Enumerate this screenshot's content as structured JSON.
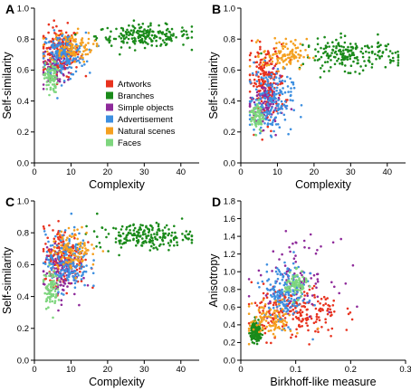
{
  "chart_data": [
    {
      "panel": "A",
      "type": "scatter",
      "xlabel": "Complexity",
      "ylabel": "Self-similarity",
      "xlim": [
        0,
        45
      ],
      "ylim": [
        0,
        1.0
      ],
      "xticks": [
        0,
        10,
        20,
        30,
        40
      ],
      "yticks": [
        0,
        0.2,
        0.4,
        0.6,
        0.8,
        1.0
      ],
      "series_clusters": [
        {
          "name": "Artworks",
          "color": "#e8321e",
          "n": 200,
          "x_mean": 7,
          "x_sd": 2.6,
          "y_mean": 0.72,
          "y_sd": 0.08
        },
        {
          "name": "Branches",
          "color": "#1a8a1a",
          "n": 200,
          "x_mean": 30,
          "x_sd": 6.5,
          "y_mean": 0.82,
          "y_sd": 0.035
        },
        {
          "name": "Simple objects",
          "color": "#8e2a9a",
          "n": 100,
          "x_mean": 6,
          "x_sd": 2.2,
          "y_mean": 0.63,
          "y_sd": 0.06
        },
        {
          "name": "Advertisement",
          "color": "#3d8fe0",
          "n": 180,
          "x_mean": 8,
          "x_sd": 3,
          "y_mean": 0.7,
          "y_sd": 0.07
        },
        {
          "name": "Natural scenes",
          "color": "#f5a020",
          "n": 100,
          "x_mean": 10,
          "x_sd": 3,
          "y_mean": 0.75,
          "y_sd": 0.05
        },
        {
          "name": "Faces",
          "color": "#7ed67e",
          "n": 80,
          "x_mean": 4.5,
          "x_sd": 0.9,
          "y_mean": 0.55,
          "y_sd": 0.05
        }
      ]
    },
    {
      "panel": "B",
      "type": "scatter",
      "xlabel": "Complexity",
      "ylabel": "Self-similarity",
      "xlim": [
        0,
        45
      ],
      "ylim": [
        0,
        1.0
      ],
      "xticks": [
        0,
        10,
        20,
        30,
        40
      ],
      "yticks": [
        0,
        0.2,
        0.4,
        0.6,
        0.8,
        1.0
      ],
      "series_clusters": [
        {
          "name": "Artworks",
          "color": "#e8321e",
          "n": 200,
          "x_mean": 7,
          "x_sd": 2.5,
          "y_mean": 0.52,
          "y_sd": 0.12
        },
        {
          "name": "Branches",
          "color": "#1a8a1a",
          "n": 200,
          "x_mean": 30,
          "x_sd": 6.5,
          "y_mean": 0.7,
          "y_sd": 0.05
        },
        {
          "name": "Simple objects",
          "color": "#8e2a9a",
          "n": 100,
          "x_mean": 7,
          "x_sd": 2.3,
          "y_mean": 0.38,
          "y_sd": 0.08
        },
        {
          "name": "Advertisement",
          "color": "#3d8fe0",
          "n": 180,
          "x_mean": 8,
          "x_sd": 3,
          "y_mean": 0.4,
          "y_sd": 0.1
        },
        {
          "name": "Natural scenes",
          "color": "#f5a020",
          "n": 100,
          "x_mean": 12,
          "x_sd": 3,
          "y_mean": 0.7,
          "y_sd": 0.05
        },
        {
          "name": "Faces",
          "color": "#7ed67e",
          "n": 80,
          "x_mean": 4.5,
          "x_sd": 0.9,
          "y_mean": 0.3,
          "y_sd": 0.05
        }
      ]
    },
    {
      "panel": "C",
      "type": "scatter",
      "xlabel": "Complexity",
      "ylabel": "Self-similarity",
      "xlim": [
        0,
        45
      ],
      "ylim": [
        0,
        1.0
      ],
      "xticks": [
        0,
        10,
        20,
        30,
        40
      ],
      "yticks": [
        0,
        0.2,
        0.4,
        0.6,
        0.8,
        1.0
      ],
      "series_clusters": [
        {
          "name": "Artworks",
          "color": "#e8321e",
          "n": 200,
          "x_mean": 8,
          "x_sd": 2.8,
          "y_mean": 0.65,
          "y_sd": 0.09
        },
        {
          "name": "Branches",
          "color": "#1a8a1a",
          "n": 200,
          "x_mean": 30,
          "x_sd": 6.5,
          "y_mean": 0.78,
          "y_sd": 0.04
        },
        {
          "name": "Simple objects",
          "color": "#8e2a9a",
          "n": 100,
          "x_mean": 7,
          "x_sd": 2.3,
          "y_mean": 0.55,
          "y_sd": 0.08
        },
        {
          "name": "Advertisement",
          "color": "#3d8fe0",
          "n": 180,
          "x_mean": 9,
          "x_sd": 3,
          "y_mean": 0.62,
          "y_sd": 0.09
        },
        {
          "name": "Natural scenes",
          "color": "#f5a020",
          "n": 100,
          "x_mean": 11,
          "x_sd": 3,
          "y_mean": 0.7,
          "y_sd": 0.06
        },
        {
          "name": "Faces",
          "color": "#7ed67e",
          "n": 80,
          "x_mean": 4.5,
          "x_sd": 0.9,
          "y_mean": 0.45,
          "y_sd": 0.06
        }
      ]
    },
    {
      "panel": "D",
      "type": "scatter",
      "xlabel": "Birkhoff-like measure",
      "ylabel": "Anisotropy",
      "xlim": [
        0,
        0.3
      ],
      "ylim": [
        0,
        1.8
      ],
      "xticks": [
        0,
        0.1,
        0.2,
        0.3
      ],
      "yticks": [
        0,
        0.2,
        0.4,
        0.6,
        0.8,
        1.0,
        1.2,
        1.4,
        1.6,
        1.8
      ],
      "series_clusters": [
        {
          "name": "Artworks",
          "color": "#e8321e",
          "n": 200,
          "x_mean": 0.1,
          "x_sd": 0.04,
          "y_mean": 0.55,
          "y_sd": 0.15
        },
        {
          "name": "Branches",
          "color": "#1a8a1a",
          "n": 200,
          "x_mean": 0.028,
          "x_sd": 0.005,
          "y_mean": 0.32,
          "y_sd": 0.05
        },
        {
          "name": "Simple objects",
          "color": "#8e2a9a",
          "n": 100,
          "x_mean": 0.1,
          "x_sd": 0.035,
          "y_mean": 0.95,
          "y_sd": 0.2
        },
        {
          "name": "Advertisement",
          "color": "#3d8fe0",
          "n": 180,
          "x_mean": 0.08,
          "x_sd": 0.02,
          "y_mean": 0.75,
          "y_sd": 0.17
        },
        {
          "name": "Natural scenes",
          "color": "#f5a020",
          "n": 100,
          "x_mean": 0.055,
          "x_sd": 0.02,
          "y_mean": 0.45,
          "y_sd": 0.1
        },
        {
          "name": "Faces",
          "color": "#7ed67e",
          "n": 80,
          "x_mean": 0.1,
          "x_sd": 0.01,
          "y_mean": 0.85,
          "y_sd": 0.07
        }
      ]
    }
  ],
  "legend": {
    "placement": "inside panel A, lower-right",
    "entries": [
      {
        "label": "Artworks",
        "color": "#e8321e"
      },
      {
        "label": "Branches",
        "color": "#1a8a1a"
      },
      {
        "label": "Simple objects",
        "color": "#8e2a9a"
      },
      {
        "label": "Advertisement",
        "color": "#3d8fe0"
      },
      {
        "label": "Natural scenes",
        "color": "#f5a020"
      },
      {
        "label": "Faces",
        "color": "#7ed67e"
      }
    ]
  }
}
